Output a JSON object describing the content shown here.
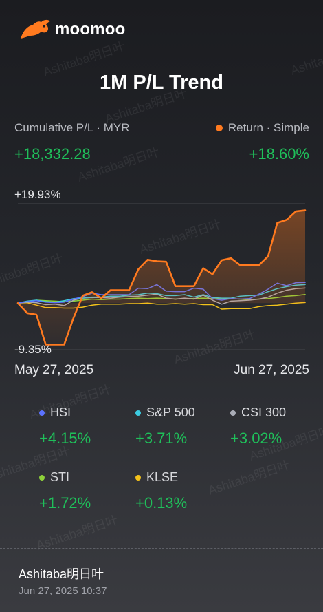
{
  "brand": {
    "name": "moomoo"
  },
  "title": "1M P/L Trend",
  "summary": {
    "left_label": "Cumulative P/L · MYR",
    "left_value": "+18,332.28",
    "right_label": "Return · Simple",
    "right_value": "+18.60%"
  },
  "axis": {
    "y_max": "+19.93%",
    "y_min": "-9.35%",
    "x_start": "May 27, 2025",
    "x_end": "Jun 27, 2025"
  },
  "colors": {
    "accent": "#ff7a1f",
    "gain": "#1fbf5a",
    "HSI": "#5b72ff",
    "S&P 500": "#3ccbe0",
    "CSI 300": "#a9acb6",
    "STI": "#8ed13a",
    "KLSE": "#f3c21b"
  },
  "legend": [
    {
      "name": "HSI",
      "value": "+4.15%",
      "color": "#5b72ff"
    },
    {
      "name": "S&P 500",
      "value": "+3.71%",
      "color": "#3ccbe0"
    },
    {
      "name": "CSI 300",
      "value": "+3.02%",
      "color": "#a9acb6"
    },
    {
      "name": "STI",
      "value": "+1.72%",
      "color": "#8ed13a"
    },
    {
      "name": "KLSE",
      "value": "+0.13%",
      "color": "#f3c21b"
    }
  ],
  "chart_data": {
    "type": "line",
    "ylim": [
      -9.35,
      19.93
    ],
    "x_range": [
      "May 27, 2025",
      "Jun 27, 2025"
    ],
    "series": [
      {
        "name": "Return · Simple",
        "color": "#ff7a1f",
        "values": [
          0,
          -2.0,
          -2.3,
          -8.3,
          -8.3,
          -8.3,
          -3.0,
          1.5,
          2.2,
          1.0,
          2.6,
          2.6,
          2.6,
          6.8,
          8.7,
          8.4,
          8.3,
          3.4,
          3.4,
          3.4,
          7.0,
          5.8,
          8.6,
          9.0,
          7.6,
          7.6,
          7.6,
          9.4,
          16.1,
          16.7,
          18.4,
          18.6
        ]
      },
      {
        "name": "HSI",
        "color": "#5b72ff",
        "values": [
          0,
          0.3,
          0.5,
          0.2,
          0.1,
          0.2,
          0.8,
          1.3,
          2.0,
          1.7,
          1.7,
          1.7,
          1.7,
          3.0,
          2.9,
          3.7,
          2.4,
          2.3,
          2.3,
          3.0,
          2.8,
          0.9,
          0.6,
          0.9,
          0.8,
          0.9,
          1.8,
          2.8,
          4.0,
          3.5,
          4.1,
          4.15
        ]
      },
      {
        "name": "S&P 500",
        "color": "#3ccbe0",
        "values": [
          0,
          0.4,
          0.6,
          0.3,
          0.2,
          0.5,
          0.9,
          1.0,
          1.2,
          1.2,
          1.4,
          1.4,
          1.6,
          1.7,
          2.0,
          1.9,
          1.5,
          1.5,
          1.7,
          1.2,
          1.7,
          1.1,
          1.0,
          1.0,
          1.4,
          1.5,
          1.6,
          2.3,
          2.9,
          3.3,
          3.6,
          3.71
        ]
      },
      {
        "name": "CSI 300",
        "color": "#a9acb6",
        "values": [
          0,
          0.2,
          0.1,
          -0.3,
          -0.2,
          -0.5,
          0.6,
          1.0,
          1.1,
          1.1,
          1.0,
          1.2,
          1.3,
          1.4,
          1.6,
          1.8,
          1.0,
          0.8,
          1.0,
          0.8,
          1.6,
          0.6,
          -0.2,
          0.4,
          0.5,
          0.6,
          0.8,
          1.2,
          2.0,
          2.6,
          2.9,
          3.02
        ]
      },
      {
        "name": "STI",
        "color": "#8ed13a",
        "values": [
          0,
          0.2,
          0.6,
          0.5,
          0.4,
          0.3,
          0.4,
          0.6,
          0.8,
          0.7,
          0.8,
          0.8,
          0.9,
          1.0,
          0.9,
          1.0,
          0.9,
          0.8,
          0.9,
          0.9,
          1.0,
          0.9,
          0.8,
          0.9,
          0.8,
          0.7,
          0.8,
          0.9,
          1.1,
          1.4,
          1.5,
          1.72
        ]
      },
      {
        "name": "KLSE",
        "color": "#f3c21b",
        "values": [
          0,
          0.1,
          -0.4,
          -0.9,
          -0.9,
          -1.0,
          -1.0,
          -0.8,
          -0.4,
          -0.2,
          -0.2,
          -0.2,
          -0.1,
          -0.1,
          0.0,
          -0.2,
          -0.2,
          -0.1,
          -0.2,
          -0.1,
          -0.3,
          -0.3,
          -1.2,
          -1.1,
          -1.1,
          -1.1,
          -0.7,
          -0.5,
          -0.4,
          -0.2,
          0.0,
          0.13
        ]
      }
    ]
  },
  "footer": {
    "user": "Ashitaba明日叶",
    "timestamp": "Jun 27, 2025 10:37"
  }
}
